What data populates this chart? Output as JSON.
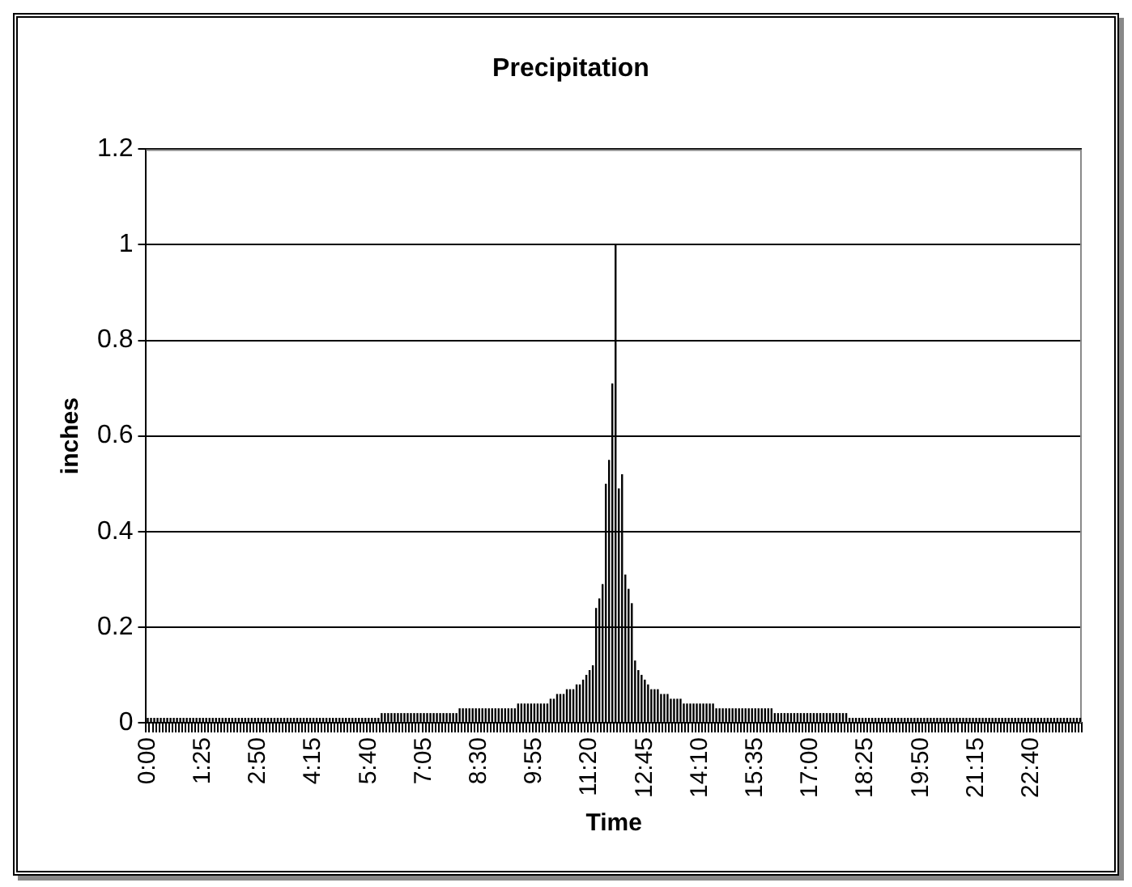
{
  "chart_data": {
    "type": "bar",
    "title": "Precipitation",
    "xlabel": "Time",
    "ylabel": "inches",
    "color": "#000000",
    "ylim": [
      0,
      1.2
    ],
    "yticks": [
      0,
      0.2,
      0.4,
      0.6,
      0.8,
      1,
      1.2
    ],
    "grid": "y",
    "categories": [
      "0:00",
      null,
      null,
      null,
      null,
      null,
      null,
      null,
      null,
      null,
      null,
      null,
      null,
      null,
      null,
      null,
      null,
      "1:25",
      null,
      null,
      null,
      null,
      null,
      null,
      null,
      null,
      null,
      null,
      null,
      null,
      null,
      null,
      null,
      null,
      "2:50",
      null,
      null,
      null,
      null,
      null,
      null,
      null,
      null,
      null,
      null,
      null,
      null,
      null,
      null,
      null,
      null,
      "4:15",
      null,
      null,
      null,
      null,
      null,
      null,
      null,
      null,
      null,
      null,
      null,
      null,
      null,
      null,
      null,
      null,
      "5:40",
      null,
      null,
      null,
      null,
      null,
      null,
      null,
      null,
      null,
      null,
      null,
      null,
      null,
      null,
      null,
      null,
      "7:05",
      null,
      null,
      null,
      null,
      null,
      null,
      null,
      null,
      null,
      null,
      null,
      null,
      null,
      null,
      null,
      null,
      "8:30",
      null,
      null,
      null,
      null,
      null,
      null,
      null,
      null,
      null,
      null,
      null,
      null,
      null,
      null,
      null,
      null,
      "9:55",
      null,
      null,
      null,
      null,
      null,
      null,
      null,
      null,
      null,
      null,
      null,
      null,
      null,
      null,
      null,
      null,
      "11:20",
      null,
      null,
      null,
      null,
      null,
      null,
      null,
      null,
      null,
      null,
      null,
      null,
      null,
      null,
      null,
      null,
      "12:45",
      null,
      null,
      null,
      null,
      null,
      null,
      null,
      null,
      null,
      null,
      null,
      null,
      null,
      null,
      null,
      null,
      "14:10",
      null,
      null,
      null,
      null,
      null,
      null,
      null,
      null,
      null,
      null,
      null,
      null,
      null,
      null,
      null,
      null,
      "15:35",
      null,
      null,
      null,
      null,
      null,
      null,
      null,
      null,
      null,
      null,
      null,
      null,
      null,
      null,
      null,
      null,
      "17:00",
      null,
      null,
      null,
      null,
      null,
      null,
      null,
      null,
      null,
      null,
      null,
      null,
      null,
      null,
      null,
      null,
      "18:25",
      null,
      null,
      null,
      null,
      null,
      null,
      null,
      null,
      null,
      null,
      null,
      null,
      null,
      null,
      null,
      null,
      "19:50",
      null,
      null,
      null,
      null,
      null,
      null,
      null,
      null,
      null,
      null,
      null,
      null,
      null,
      null,
      null,
      null,
      "21:15",
      null,
      null,
      null,
      null,
      null,
      null,
      null,
      null,
      null,
      null,
      null,
      null,
      null,
      null,
      null,
      null,
      "22:40",
      null,
      null,
      null,
      null,
      null,
      null,
      null,
      null,
      null,
      null,
      null,
      null,
      null,
      null,
      null
    ],
    "values": [
      0.01,
      0.01,
      0.01,
      0.01,
      0.01,
      0.01,
      0.01,
      0.01,
      0.01,
      0.01,
      0.01,
      0.01,
      0.01,
      0.01,
      0.01,
      0.01,
      0.01,
      0.01,
      0.01,
      0.01,
      0.01,
      0.01,
      0.01,
      0.01,
      0.01,
      0.01,
      0.01,
      0.01,
      0.01,
      0.01,
      0.01,
      0.01,
      0.01,
      0.01,
      0.01,
      0.01,
      0.01,
      0.01,
      0.01,
      0.01,
      0.01,
      0.01,
      0.01,
      0.01,
      0.01,
      0.01,
      0.01,
      0.01,
      0.01,
      0.01,
      0.01,
      0.01,
      0.01,
      0.01,
      0.01,
      0.01,
      0.01,
      0.01,
      0.01,
      0.01,
      0.01,
      0.01,
      0.01,
      0.01,
      0.01,
      0.01,
      0.01,
      0.01,
      0.01,
      0.01,
      0.01,
      0.01,
      0.02,
      0.02,
      0.02,
      0.02,
      0.02,
      0.02,
      0.02,
      0.02,
      0.02,
      0.02,
      0.02,
      0.02,
      0.02,
      0.02,
      0.02,
      0.02,
      0.02,
      0.02,
      0.02,
      0.02,
      0.02,
      0.02,
      0.02,
      0.02,
      0.03,
      0.03,
      0.03,
      0.03,
      0.03,
      0.03,
      0.03,
      0.03,
      0.03,
      0.03,
      0.03,
      0.03,
      0.03,
      0.03,
      0.03,
      0.03,
      0.03,
      0.03,
      0.04,
      0.04,
      0.04,
      0.04,
      0.04,
      0.04,
      0.04,
      0.04,
      0.04,
      0.04,
      0.05,
      0.05,
      0.06,
      0.06,
      0.06,
      0.07,
      0.07,
      0.07,
      0.08,
      0.08,
      0.09,
      0.1,
      0.11,
      0.12,
      0.24,
      0.26,
      0.29,
      0.5,
      0.55,
      0.71,
      1,
      0.49,
      0.52,
      0.31,
      0.28,
      0.25,
      0.13,
      0.11,
      0.1,
      0.09,
      0.08,
      0.07,
      0.07,
      0.07,
      0.06,
      0.06,
      0.06,
      0.05,
      0.05,
      0.05,
      0.05,
      0.04,
      0.04,
      0.04,
      0.04,
      0.04,
      0.04,
      0.04,
      0.04,
      0.04,
      0.04,
      0.03,
      0.03,
      0.03,
      0.03,
      0.03,
      0.03,
      0.03,
      0.03,
      0.03,
      0.03,
      0.03,
      0.03,
      0.03,
      0.03,
      0.03,
      0.03,
      0.03,
      0.03,
      0.02,
      0.02,
      0.02,
      0.02,
      0.02,
      0.02,
      0.02,
      0.02,
      0.02,
      0.02,
      0.02,
      0.02,
      0.02,
      0.02,
      0.02,
      0.02,
      0.02,
      0.02,
      0.02,
      0.02,
      0.02,
      0.02,
      0.02,
      0.01,
      0.01,
      0.01,
      0.01,
      0.01,
      0.01,
      0.01,
      0.01,
      0.01,
      0.01,
      0.01,
      0.01,
      0.01,
      0.01,
      0.01,
      0.01,
      0.01,
      0.01,
      0.01,
      0.01,
      0.01,
      0.01,
      0.01,
      0.01,
      0.01,
      0.01,
      0.01,
      0.01,
      0.01,
      0.01,
      0.01,
      0.01,
      0.01,
      0.01,
      0.01,
      0.01,
      0.01,
      0.01,
      0.01,
      0.01,
      0.01,
      0.01,
      0.01,
      0.01,
      0.01,
      0.01,
      0.01,
      0.01,
      0.01,
      0.01,
      0.01,
      0.01,
      0.01,
      0.01,
      0.01,
      0.01,
      0.01,
      0.01,
      0.01,
      0.01,
      0.01,
      0.01,
      0.01,
      0.01,
      0.01,
      0.01,
      0.01,
      0.01,
      0.01,
      0.01,
      0.01,
      0.01
    ]
  }
}
